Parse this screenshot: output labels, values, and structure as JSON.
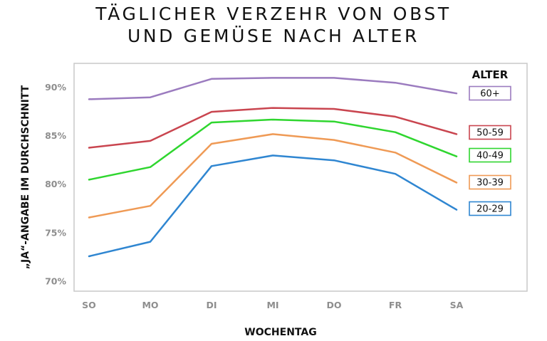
{
  "chart_data": {
    "type": "line",
    "title_lines": [
      "TÄGLICHER VERZEHR VON OBST",
      "UND GEMÜSE NACH ALTER"
    ],
    "xlabel": "WOCHENTAG",
    "ylabel": "„JA“-ANGABE IM DURCHSCHNITT",
    "categories": [
      "SO",
      "MO",
      "DI",
      "MI",
      "DO",
      "FR",
      "SA"
    ],
    "y_ticks": [
      "70%",
      "75%",
      "80%",
      "85%",
      "90%"
    ],
    "ylim": [
      69,
      92.5
    ],
    "y_unit": "%",
    "grid": false,
    "legend_title": "ALTER",
    "legend_position": "right",
    "series": [
      {
        "name": "60+",
        "color": "#9b7bbf",
        "values": [
          88.8,
          89.0,
          90.9,
          91.0,
          91.0,
          90.5,
          89.4
        ]
      },
      {
        "name": "50-59",
        "color": "#c9454f",
        "values": [
          83.8,
          84.5,
          87.5,
          87.9,
          87.8,
          87.0,
          85.2
        ]
      },
      {
        "name": "40-49",
        "color": "#2fd62f",
        "values": [
          80.5,
          81.8,
          86.4,
          86.7,
          86.5,
          85.4,
          82.9
        ]
      },
      {
        "name": "30-39",
        "color": "#ef9a55",
        "values": [
          76.6,
          77.8,
          84.2,
          85.2,
          84.6,
          83.3,
          80.2
        ]
      },
      {
        "name": "20-29",
        "color": "#2f86d1",
        "values": [
          72.6,
          74.1,
          81.9,
          83.0,
          82.5,
          81.1,
          77.4
        ]
      }
    ]
  }
}
